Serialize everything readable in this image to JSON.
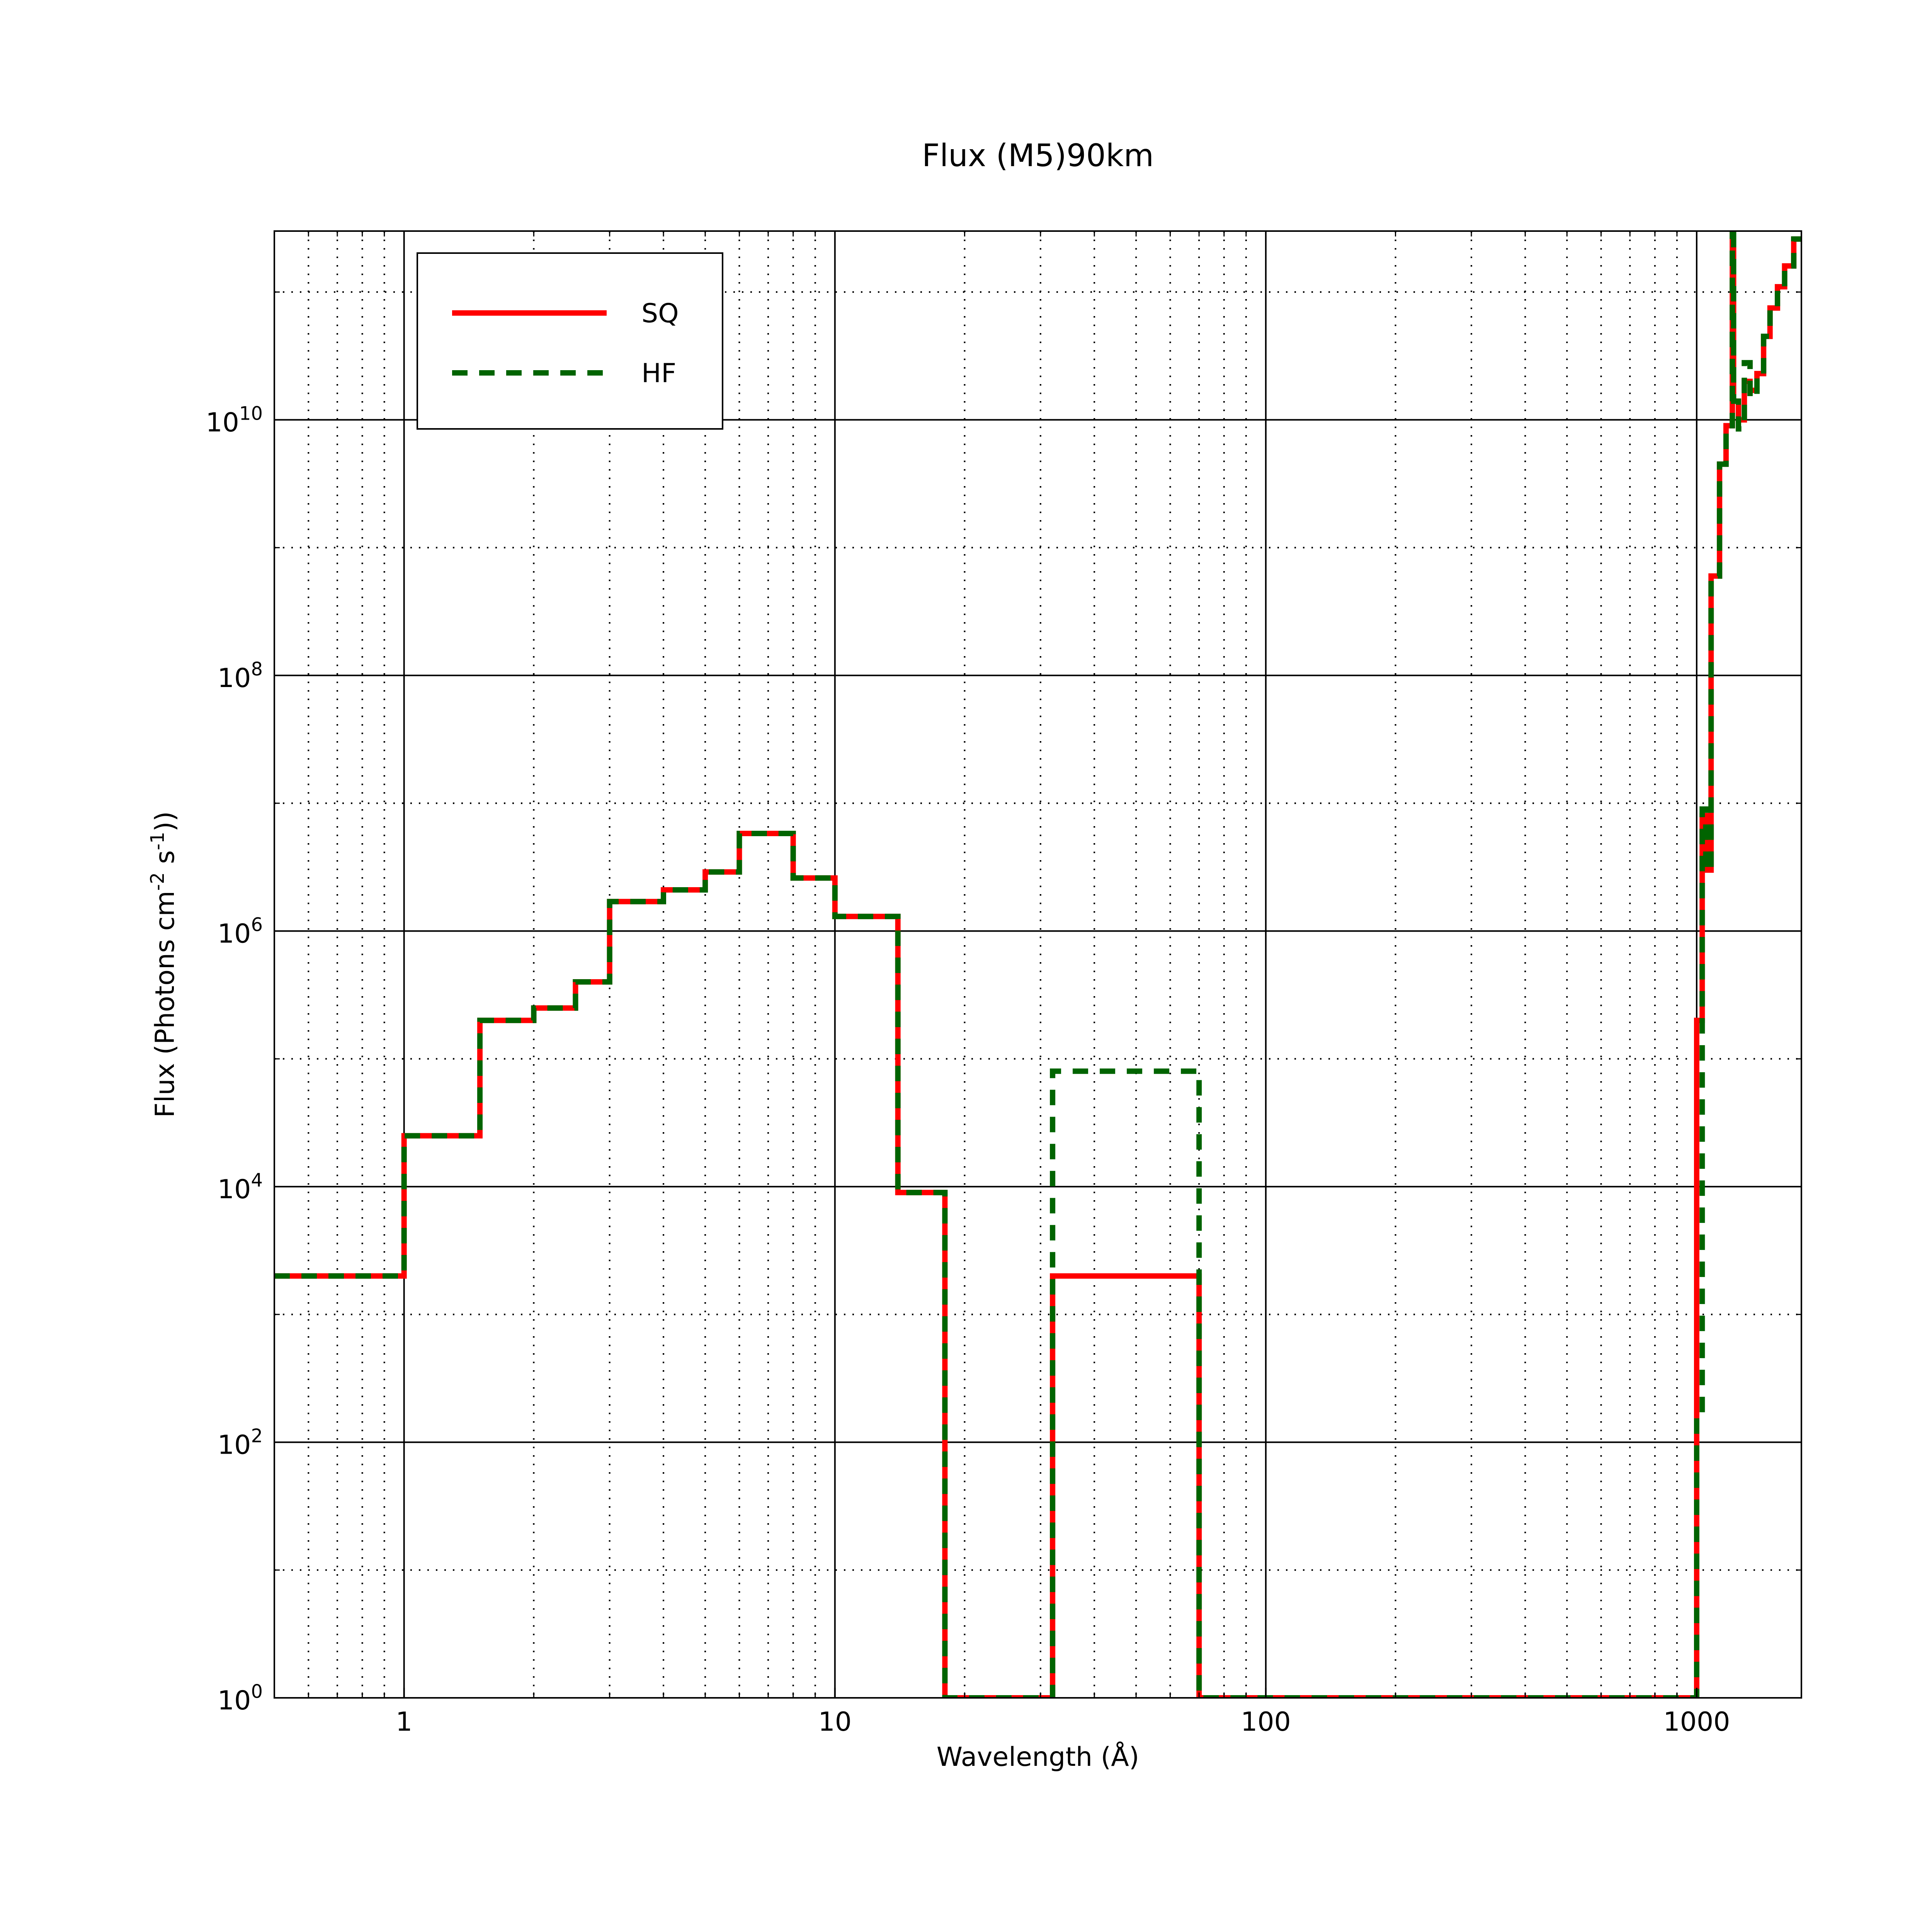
{
  "chart_data": {
    "type": "line",
    "title": "Flux (M5)90km",
    "xlabel": "Wavelength (Å)",
    "ylabel": {
      "main": "Flux (Photons cm",
      "exp1": "-2",
      "mid": " s",
      "exp2": "-1",
      "end": "))"
    },
    "x_scale": "log",
    "y_scale": "log",
    "xlim": [
      0.5,
      1750
    ],
    "ylim": [
      1,
      300000000000.0
    ],
    "x_ticks": [
      {
        "value": 1,
        "label": "1"
      },
      {
        "value": 10,
        "label": "10"
      },
      {
        "value": 100,
        "label": "100"
      },
      {
        "value": 1000,
        "label": "1000"
      }
    ],
    "y_ticks": [
      {
        "value": 1,
        "base": "10",
        "exp": "0"
      },
      {
        "value": 100,
        "base": "10",
        "exp": "2"
      },
      {
        "value": 10000,
        "base": "10",
        "exp": "4"
      },
      {
        "value": 1000000,
        "base": "10",
        "exp": "6"
      },
      {
        "value": 100000000,
        "base": "10",
        "exp": "8"
      },
      {
        "value": 10000000000,
        "base": "10",
        "exp": "10"
      }
    ],
    "grid": true,
    "legend_position": "top-left",
    "series": [
      {
        "name": "SQ",
        "color": "#ff0000",
        "style": "solid",
        "points": [
          [
            0.5,
            2000
          ],
          [
            1,
            2000
          ],
          [
            1,
            25000
          ],
          [
            1.5,
            25000
          ],
          [
            1.5,
            200000
          ],
          [
            2,
            200000
          ],
          [
            2,
            250000
          ],
          [
            2.5,
            250000
          ],
          [
            2.5,
            400000
          ],
          [
            3,
            400000
          ],
          [
            3,
            1700000
          ],
          [
            4,
            1700000
          ],
          [
            4,
            2100000
          ],
          [
            5,
            2100000
          ],
          [
            5,
            2900000
          ],
          [
            6,
            2900000
          ],
          [
            6,
            5800000
          ],
          [
            8,
            5800000
          ],
          [
            8,
            2600000
          ],
          [
            10,
            2600000
          ],
          [
            10,
            1300000
          ],
          [
            14,
            1300000
          ],
          [
            14,
            9000
          ],
          [
            18,
            9000
          ],
          [
            18,
            1
          ],
          [
            32,
            1
          ],
          [
            32,
            2000
          ],
          [
            70,
            2000
          ],
          [
            70,
            1
          ],
          [
            1000,
            1
          ],
          [
            1000,
            200000
          ],
          [
            1030,
            200000
          ],
          [
            1030,
            8000000
          ],
          [
            1050,
            8000000
          ],
          [
            1050,
            3000000
          ],
          [
            1080,
            3000000
          ],
          [
            1080,
            600000000
          ],
          [
            1130,
            600000000
          ],
          [
            1130,
            4500000000
          ],
          [
            1170,
            4500000000
          ],
          [
            1170,
            9000000000
          ],
          [
            1210,
            9000000000
          ],
          [
            1210,
            350000000000
          ],
          [
            1218,
            350000000000
          ],
          [
            1218,
            14000000000
          ],
          [
            1250,
            14000000000
          ],
          [
            1250,
            10000000000
          ],
          [
            1290,
            10000000000
          ],
          [
            1290,
            20000000000
          ],
          [
            1330,
            20000000000
          ],
          [
            1330,
            17000000000
          ],
          [
            1380,
            17000000000
          ],
          [
            1380,
            23000000000
          ],
          [
            1430,
            23000000000
          ],
          [
            1430,
            45000000000
          ],
          [
            1480,
            45000000000
          ],
          [
            1480,
            75000000000
          ],
          [
            1540,
            75000000000
          ],
          [
            1540,
            110000000000
          ],
          [
            1600,
            110000000000
          ],
          [
            1600,
            160000000000
          ],
          [
            1680,
            160000000000
          ],
          [
            1680,
            260000000000
          ],
          [
            1750,
            260000000000
          ]
        ]
      },
      {
        "name": "HF",
        "color": "#006400",
        "style": "dashed",
        "points": [
          [
            0.5,
            2000
          ],
          [
            1,
            2000
          ],
          [
            1,
            25000
          ],
          [
            1.5,
            25000
          ],
          [
            1.5,
            200000
          ],
          [
            2,
            200000
          ],
          [
            2,
            250000
          ],
          [
            2.5,
            250000
          ],
          [
            2.5,
            400000
          ],
          [
            3,
            400000
          ],
          [
            3,
            1700000
          ],
          [
            4,
            1700000
          ],
          [
            4,
            2100000
          ],
          [
            5,
            2100000
          ],
          [
            5,
            2900000
          ],
          [
            6,
            2900000
          ],
          [
            6,
            5800000
          ],
          [
            8,
            5800000
          ],
          [
            8,
            2600000
          ],
          [
            10,
            2600000
          ],
          [
            10,
            1300000
          ],
          [
            14,
            1300000
          ],
          [
            14,
            9000
          ],
          [
            18,
            9000
          ],
          [
            18,
            1
          ],
          [
            32,
            1
          ],
          [
            32,
            80000
          ],
          [
            70,
            80000
          ],
          [
            70,
            1
          ],
          [
            1000,
            1
          ],
          [
            1000,
            170
          ],
          [
            1030,
            170
          ],
          [
            1030,
            9000000
          ],
          [
            1050,
            9000000
          ],
          [
            1050,
            3000000
          ],
          [
            1080,
            3000000
          ],
          [
            1080,
            600000000
          ],
          [
            1130,
            600000000
          ],
          [
            1130,
            4500000000
          ],
          [
            1170,
            4500000000
          ],
          [
            1170,
            9000000000
          ],
          [
            1210,
            9000000000
          ],
          [
            1210,
            350000000000
          ],
          [
            1218,
            350000000000
          ],
          [
            1218,
            14000000000
          ],
          [
            1250,
            14000000000
          ],
          [
            1250,
            8500000000
          ],
          [
            1290,
            8500000000
          ],
          [
            1290,
            28000000000
          ],
          [
            1330,
            28000000000
          ],
          [
            1330,
            15000000000
          ],
          [
            1380,
            15000000000
          ],
          [
            1380,
            23000000000
          ],
          [
            1430,
            23000000000
          ],
          [
            1430,
            45000000000
          ],
          [
            1480,
            45000000000
          ],
          [
            1480,
            75000000000
          ],
          [
            1540,
            75000000000
          ],
          [
            1540,
            110000000000
          ],
          [
            1600,
            110000000000
          ],
          [
            1600,
            160000000000
          ],
          [
            1680,
            160000000000
          ],
          [
            1680,
            260000000000
          ],
          [
            1750,
            260000000000
          ]
        ]
      }
    ]
  }
}
